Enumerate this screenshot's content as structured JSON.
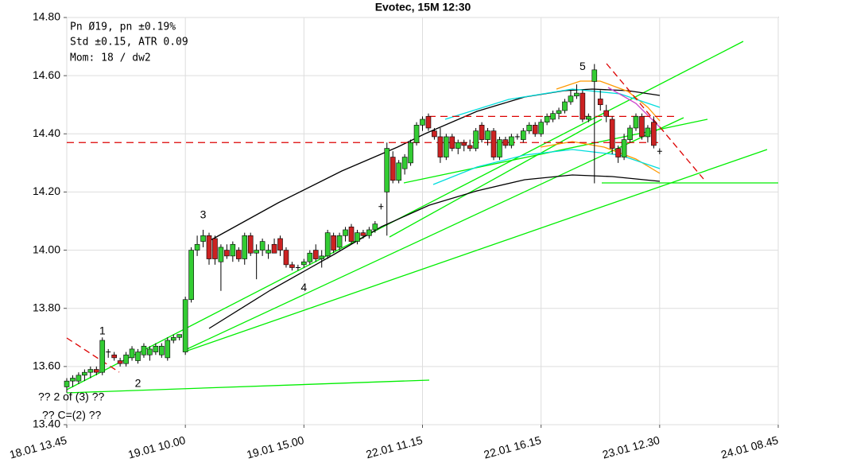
{
  "chart_data": {
    "type": "candlestick",
    "title": "Evotec, 15M 12:30",
    "info": [
      "Pn  Ø19, pn ±0.19%",
      "Std ±0.15, ATR 0.09",
      "Mom: 18 / dw2"
    ],
    "notes": [
      "?? 2 of (3) ??",
      "?? C=(2) ??"
    ],
    "waves": [
      {
        "label": "1",
        "x": 6,
        "y": 13.72
      },
      {
        "label": "2",
        "x": 12,
        "y": 13.54
      },
      {
        "label": "3",
        "x": 23,
        "y": 14.12
      },
      {
        "label": "4",
        "x": 40,
        "y": 13.87
      },
      {
        "label": "5",
        "x": 87,
        "y": 14.63
      }
    ],
    "levels": [
      14.37,
      14.46
    ],
    "x": [
      0,
      1,
      2,
      3,
      4,
      5,
      6,
      7,
      8,
      9,
      10,
      11,
      12,
      13,
      14,
      15,
      16,
      17,
      18,
      19,
      20,
      21,
      22,
      23,
      24,
      25,
      26,
      27,
      28,
      29,
      30,
      31,
      32,
      33,
      34,
      35,
      36,
      37,
      38,
      39,
      40,
      41,
      42,
      43,
      44,
      45,
      46,
      47,
      48,
      49,
      50,
      51,
      52,
      53,
      54,
      55,
      56,
      57,
      58,
      59,
      60,
      61,
      62,
      63,
      64,
      65,
      66,
      67,
      68,
      69,
      70,
      71,
      72,
      73,
      74,
      75,
      76,
      77,
      78,
      79,
      80,
      81,
      82,
      83,
      84,
      85,
      86,
      87,
      88,
      89,
      90,
      91,
      92,
      93,
      94,
      95,
      96,
      97,
      98,
      99,
      100
    ],
    "open": [
      13.53,
      13.55,
      13.55,
      13.57,
      13.58,
      13.59,
      13.58,
      13.65,
      13.64,
      13.62,
      13.61,
      13.63,
      13.62,
      13.64,
      13.64,
      13.65,
      13.64,
      13.63,
      13.69,
      13.7,
      13.65,
      13.83,
      14.0,
      14.03,
      14.05,
      14.04,
      13.96,
      14.0,
      13.98,
      14.0,
      13.97,
      14.05,
      13.99,
      14.0,
      13.99,
      14.02,
      14.04,
      14.0,
      13.95,
      13.94,
      13.95,
      13.96,
      14.0,
      13.97,
      13.98,
      14.05,
      14.01,
      14.05,
      14.08,
      14.03,
      14.06,
      14.05,
      14.07,
      14.15,
      14.2,
      14.32,
      14.24,
      14.28,
      14.3,
      14.37,
      14.43,
      14.46,
      14.41,
      14.39,
      14.32,
      14.39,
      14.35,
      14.37,
      14.36,
      14.35,
      14.43,
      14.38,
      14.41,
      14.32,
      14.38,
      14.36,
      14.39,
      14.38,
      14.41,
      14.43,
      14.4,
      14.44,
      14.45,
      14.47,
      14.48,
      14.51,
      14.53,
      14.54,
      14.45,
      14.58,
      14.52,
      14.48,
      14.45,
      14.35,
      14.32,
      14.38,
      14.42,
      14.46,
      14.39,
      14.44,
      14.34
    ],
    "high": [
      13.56,
      13.57,
      13.58,
      13.59,
      13.6,
      13.6,
      13.7,
      13.66,
      13.65,
      13.63,
      13.65,
      13.67,
      13.66,
      13.68,
      13.67,
      13.68,
      13.68,
      13.7,
      13.71,
      13.71,
      13.84,
      14.01,
      14.05,
      14.07,
      14.06,
      14.05,
      14.02,
      14.02,
      14.03,
      14.01,
      14.06,
      14.06,
      14.02,
      14.04,
      14.02,
      14.04,
      14.05,
      14.01,
      13.96,
      13.95,
      13.97,
      14.0,
      14.02,
      14.0,
      14.07,
      14.06,
      14.06,
      14.08,
      14.09,
      14.07,
      14.07,
      14.08,
      14.1,
      14.16,
      14.37,
      14.34,
      14.31,
      14.33,
      14.38,
      14.44,
      14.46,
      14.47,
      14.42,
      14.42,
      14.4,
      14.4,
      14.38,
      14.38,
      14.38,
      14.42,
      14.44,
      14.42,
      14.42,
      14.39,
      14.39,
      14.4,
      14.4,
      14.42,
      14.44,
      14.44,
      14.45,
      14.47,
      14.48,
      14.49,
      14.52,
      14.55,
      14.57,
      14.55,
      14.47,
      14.64,
      14.55,
      14.5,
      14.46,
      14.36,
      14.4,
      14.43,
      14.47,
      14.47,
      14.43,
      14.46,
      14.35
    ],
    "low": [
      13.51,
      13.53,
      13.54,
      13.55,
      13.56,
      13.57,
      13.57,
      13.63,
      13.62,
      13.6,
      13.6,
      13.62,
      13.61,
      13.63,
      13.62,
      13.64,
      13.63,
      13.62,
      13.68,
      13.69,
      13.64,
      13.82,
      13.98,
      14.01,
      13.95,
      13.95,
      13.86,
      13.97,
      13.96,
      13.96,
      13.95,
      13.98,
      13.9,
      13.98,
      13.97,
      13.99,
      13.98,
      13.94,
      13.93,
      13.93,
      13.94,
      13.95,
      13.96,
      13.94,
      13.97,
      13.99,
      14.0,
      14.03,
      14.02,
      14.02,
      14.04,
      14.04,
      14.06,
      14.14,
      14.05,
      14.23,
      14.23,
      14.26,
      14.29,
      14.36,
      14.41,
      14.41,
      14.38,
      14.3,
      14.31,
      14.34,
      14.33,
      14.34,
      14.34,
      14.34,
      14.37,
      14.36,
      14.31,
      14.31,
      14.35,
      14.35,
      14.38,
      14.37,
      14.4,
      14.39,
      14.39,
      14.43,
      14.44,
      14.45,
      14.47,
      14.5,
      14.52,
      14.44,
      14.44,
      14.23,
      14.48,
      14.44,
      14.33,
      14.3,
      14.31,
      14.37,
      14.41,
      14.38,
      14.37,
      14.35,
      14.33
    ],
    "close": [
      13.55,
      13.56,
      13.57,
      13.58,
      13.59,
      13.58,
      13.69,
      13.65,
      13.63,
      13.61,
      13.64,
      13.66,
      13.65,
      13.67,
      13.66,
      13.67,
      13.67,
      13.69,
      13.7,
      13.71,
      13.83,
      14.0,
      14.02,
      14.05,
      13.97,
      13.97,
      14.01,
      13.98,
      14.02,
      13.97,
      14.05,
      13.99,
      14.0,
      14.03,
      14.0,
      13.99,
      14.0,
      13.95,
      13.94,
      13.94,
      13.96,
      13.99,
      13.97,
      13.98,
      14.06,
      14.0,
      14.05,
      14.07,
      14.03,
      14.06,
      14.05,
      14.07,
      14.09,
      14.15,
      14.35,
      14.24,
      14.3,
      14.32,
      14.37,
      14.43,
      14.45,
      14.42,
      14.39,
      14.32,
      14.39,
      14.35,
      14.37,
      14.36,
      14.35,
      14.41,
      14.38,
      14.41,
      14.32,
      14.38,
      14.36,
      14.39,
      14.39,
      14.41,
      14.43,
      14.4,
      14.44,
      14.46,
      14.47,
      14.48,
      14.51,
      14.53,
      14.54,
      14.45,
      14.46,
      14.62,
      14.5,
      14.46,
      14.35,
      14.32,
      14.38,
      14.42,
      14.46,
      14.39,
      14.42,
      14.36,
      14.34
    ],
    "up_color": "#33cc33",
    "down_color": "#cc2222",
    "xlim": [
      0,
      120
    ],
    "xticks": [
      {
        "value": 0,
        "label": "18.01 13.45"
      },
      {
        "value": 20,
        "label": "19.01 10.00"
      },
      {
        "value": 40,
        "label": "19.01 15.00"
      },
      {
        "value": 60,
        "label": "22.01 11.15"
      },
      {
        "value": 80,
        "label": "22.01 16.15"
      },
      {
        "value": 100,
        "label": "23.01 12.30"
      },
      {
        "value": 120,
        "label": "24.01 08.45"
      }
    ],
    "ylim": [
      13.4,
      14.8
    ],
    "yticks": [
      {
        "value": 13.4,
        "label": "13.40"
      },
      {
        "value": 13.6,
        "label": "13.60"
      },
      {
        "value": 13.8,
        "label": "13.80"
      },
      {
        "value": 14.0,
        "label": "14.00"
      },
      {
        "value": 14.2,
        "label": "14.20"
      },
      {
        "value": 14.4,
        "label": "14.40"
      },
      {
        "value": 14.6,
        "label": "14.60"
      },
      {
        "value": 14.8,
        "label": "14.80"
      }
    ],
    "grid": true
  }
}
